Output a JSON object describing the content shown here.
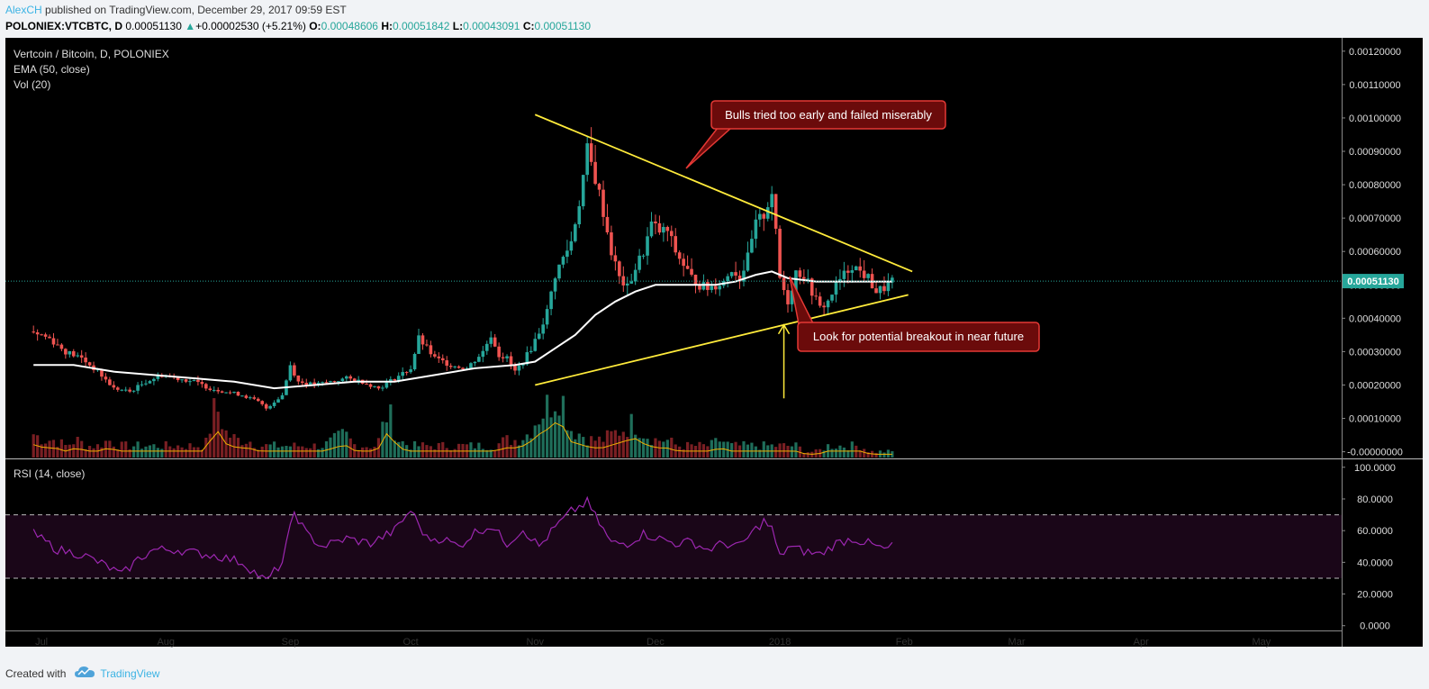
{
  "header": {
    "author": "AlexCH",
    "published": " published on TradingView.com, December 29, 2017 09:59 EST",
    "symbol": "POLONIEX:VTCBTC, D",
    "last": "0.00051130",
    "change_arrow": "▲",
    "change": "+0.00002530 (+5.21%)",
    "o_label": "O:",
    "o_value": "0.00048606",
    "h_label": "H:",
    "h_value": "0.00051842",
    "l_label": "L:",
    "l_value": "0.00043091",
    "c_label": "C:",
    "c_value": "0.00051130"
  },
  "legend": {
    "title": "Vertcoin / Bitcoin, D, POLONIEX",
    "ema": "EMA (50, close)",
    "vol": "Vol (20)",
    "rsi": "RSI (14, close)"
  },
  "annotations": {
    "bulls": "Bulls tried too early and failed miserably",
    "breakout": "Look for potential breakout in near future"
  },
  "price_label": "0.00051130",
  "footer": {
    "created_with": "Created with",
    "brand": "TradingView"
  },
  "colors": {
    "up": "#26a69a",
    "down": "#ef5350",
    "ema": "#ffffff",
    "vol_ma": "#f0b000",
    "trendline": "#ffeb3b",
    "rsi": "#9c27b0",
    "callout_bg": "#6b0b0b",
    "callout_border": "#e53935",
    "price_label_bg": "#26a69a"
  },
  "chart_data": [
    {
      "type": "candlestick",
      "title": "Vertcoin / Bitcoin, D, POLONIEX",
      "x_ticks": [
        "Jul",
        "Aug",
        "Sep",
        "Oct",
        "Nov",
        "Dec",
        "2018",
        "Feb",
        "Mar",
        "Apr",
        "May"
      ],
      "y_ticks": [
        "0.00120000",
        "0.00110000",
        "0.00100000",
        "0.00090000",
        "0.00080000",
        "0.00070000",
        "0.00060000",
        "0.00050000",
        "0.00040000",
        "0.00030000",
        "0.00020000",
        "0.00010000",
        "-0.00000000"
      ],
      "ylim": [
        -2e-05,
        0.00124
      ],
      "x_range_days": [
        -7,
        326
      ],
      "last_price": 0.0005113,
      "price_series": [
        [
          0,
          0.00036
        ],
        [
          4,
          0.00034
        ],
        [
          8,
          0.0003
        ],
        [
          12,
          0.00028
        ],
        [
          16,
          0.00024
        ],
        [
          20,
          0.00019
        ],
        [
          24,
          0.00018
        ],
        [
          28,
          0.00021
        ],
        [
          32,
          0.00023
        ],
        [
          36,
          0.00022
        ],
        [
          40,
          0.00021
        ],
        [
          44,
          0.00019
        ],
        [
          48,
          0.00018
        ],
        [
          52,
          0.00017
        ],
        [
          56,
          0.00015
        ],
        [
          58,
          0.00013
        ],
        [
          62,
          0.00017
        ],
        [
          64,
          0.00026
        ],
        [
          66,
          0.00021
        ],
        [
          70,
          0.0002
        ],
        [
          74,
          0.00021
        ],
        [
          78,
          0.00022
        ],
        [
          82,
          0.00021
        ],
        [
          86,
          0.00019
        ],
        [
          90,
          0.00022
        ],
        [
          94,
          0.00025
        ],
        [
          96,
          0.00034
        ],
        [
          100,
          0.00028
        ],
        [
          104,
          0.00026
        ],
        [
          108,
          0.00025
        ],
        [
          112,
          0.0003
        ],
        [
          114,
          0.00035
        ],
        [
          116,
          0.00029
        ],
        [
          118,
          0.00028
        ],
        [
          120,
          0.00024
        ],
        [
          122,
          0.00027
        ],
        [
          124,
          0.00031
        ],
        [
          126,
          0.00036
        ],
        [
          128,
          0.00042
        ],
        [
          130,
          0.00053
        ],
        [
          132,
          0.00058
        ],
        [
          134,
          0.00063
        ],
        [
          136,
          0.00075
        ],
        [
          138,
          0.0009
        ],
        [
          140,
          0.00082
        ],
        [
          142,
          0.00072
        ],
        [
          144,
          0.0006
        ],
        [
          146,
          0.00052
        ],
        [
          148,
          0.00049
        ],
        [
          150,
          0.00055
        ],
        [
          152,
          0.0006
        ],
        [
          154,
          0.00068
        ],
        [
          156,
          0.00066
        ],
        [
          158,
          0.00066
        ],
        [
          160,
          0.0006
        ],
        [
          162,
          0.00056
        ],
        [
          164,
          0.00052
        ],
        [
          166,
          0.0005
        ],
        [
          168,
          0.00049
        ],
        [
          170,
          0.0005
        ],
        [
          172,
          0.00051
        ],
        [
          174,
          0.00055
        ],
        [
          176,
          0.00052
        ],
        [
          178,
          0.00058
        ],
        [
          180,
          0.00068
        ],
        [
          182,
          0.00071
        ],
        [
          184,
          0.00078
        ],
        [
          186,
          0.00052
        ],
        [
          188,
          0.00045
        ],
        [
          190,
          0.00054
        ],
        [
          192,
          0.00053
        ],
        [
          194,
          0.00048
        ],
        [
          196,
          0.00043
        ],
        [
          198,
          0.00045
        ],
        [
          200,
          0.0005
        ],
        [
          202,
          0.00053
        ],
        [
          204,
          0.00056
        ],
        [
          206,
          0.00054
        ],
        [
          208,
          0.00052
        ],
        [
          210,
          0.00048
        ],
        [
          212,
          0.00049
        ],
        [
          214,
          0.000511
        ]
      ],
      "ema_series": [
        [
          0,
          0.00026
        ],
        [
          10,
          0.00026
        ],
        [
          20,
          0.00024
        ],
        [
          30,
          0.00023
        ],
        [
          40,
          0.00022
        ],
        [
          50,
          0.00021
        ],
        [
          60,
          0.00019
        ],
        [
          70,
          0.0002
        ],
        [
          80,
          0.00021
        ],
        [
          90,
          0.00021
        ],
        [
          100,
          0.00023
        ],
        [
          110,
          0.00025
        ],
        [
          120,
          0.00026
        ],
        [
          125,
          0.00027
        ],
        [
          130,
          0.00031
        ],
        [
          135,
          0.00035
        ],
        [
          140,
          0.00041
        ],
        [
          145,
          0.00045
        ],
        [
          150,
          0.00048
        ],
        [
          155,
          0.0005
        ],
        [
          160,
          0.0005
        ],
        [
          165,
          0.0005
        ],
        [
          170,
          0.0005
        ],
        [
          175,
          0.00051
        ],
        [
          180,
          0.00053
        ],
        [
          184,
          0.00054
        ],
        [
          188,
          0.00052
        ],
        [
          195,
          0.00051
        ],
        [
          200,
          0.00051
        ],
        [
          205,
          0.00051
        ],
        [
          210,
          0.00051
        ],
        [
          214,
          0.00051
        ]
      ],
      "volume_series": [
        4,
        3,
        3,
        2,
        3,
        2,
        2,
        3,
        2,
        2,
        2,
        2,
        2,
        2,
        2,
        2,
        2,
        9,
        4,
        3,
        3,
        2,
        2,
        2,
        2,
        2,
        2,
        2,
        3,
        4,
        2,
        2,
        2,
        8,
        3,
        2,
        2,
        2,
        2,
        2,
        2,
        2,
        2,
        2,
        3,
        3,
        4,
        7,
        9,
        12,
        5,
        4,
        3,
        3,
        4,
        5,
        6,
        4,
        3,
        3,
        2,
        2,
        2,
        2,
        3,
        2,
        2,
        2,
        2,
        2,
        2,
        2,
        1,
        1,
        2,
        2,
        2,
        2,
        1,
        1,
        1
      ],
      "trendlines": [
        {
          "from": [
            125,
            0.00101
          ],
          "to": [
            219,
            0.00054
          ]
        },
        {
          "from": [
            125,
            0.0002
          ],
          "to": [
            218,
            0.00047
          ]
        }
      ],
      "arrow": {
        "x": 187,
        "from": 0.00016,
        "to": 0.00038
      }
    },
    {
      "type": "line",
      "title": "RSI (14, close)",
      "y_ticks": [
        "100.0000",
        "80.0000",
        "60.0000",
        "40.0000",
        "20.0000",
        "0.0000"
      ],
      "ylim": [
        -3,
        105
      ],
      "bands": [
        30,
        70
      ],
      "values": [
        [
          0,
          58
        ],
        [
          6,
          48
        ],
        [
          12,
          45
        ],
        [
          18,
          38
        ],
        [
          22,
          32
        ],
        [
          26,
          42
        ],
        [
          30,
          48
        ],
        [
          36,
          48
        ],
        [
          40,
          46
        ],
        [
          46,
          44
        ],
        [
          52,
          40
        ],
        [
          58,
          28
        ],
        [
          62,
          40
        ],
        [
          65,
          72
        ],
        [
          68,
          58
        ],
        [
          72,
          50
        ],
        [
          78,
          55
        ],
        [
          84,
          52
        ],
        [
          90,
          60
        ],
        [
          94,
          73
        ],
        [
          98,
          55
        ],
        [
          102,
          55
        ],
        [
          106,
          50
        ],
        [
          110,
          59
        ],
        [
          114,
          63
        ],
        [
          118,
          52
        ],
        [
          122,
          61
        ],
        [
          126,
          50
        ],
        [
          130,
          62
        ],
        [
          134,
          72
        ],
        [
          138,
          78
        ],
        [
          140,
          69
        ],
        [
          144,
          52
        ],
        [
          148,
          52
        ],
        [
          152,
          58
        ],
        [
          156,
          55
        ],
        [
          160,
          52
        ],
        [
          164,
          53
        ],
        [
          168,
          48
        ],
        [
          172,
          52
        ],
        [
          176,
          50
        ],
        [
          180,
          61
        ],
        [
          182,
          66
        ],
        [
          184,
          61
        ],
        [
          186,
          43
        ],
        [
          188,
          50
        ],
        [
          192,
          47
        ],
        [
          196,
          45
        ],
        [
          200,
          52
        ],
        [
          204,
          55
        ],
        [
          208,
          52
        ],
        [
          212,
          48
        ],
        [
          214,
          50
        ]
      ]
    }
  ]
}
